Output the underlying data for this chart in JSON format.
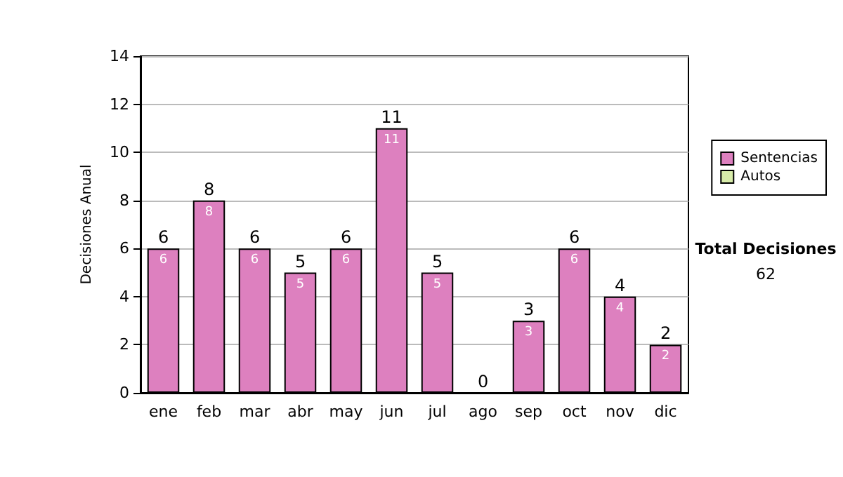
{
  "chart_data": {
    "type": "bar",
    "ylabel": "Decisiones Anual",
    "categories": [
      "ene",
      "feb",
      "mar",
      "abr",
      "may",
      "jun",
      "jul",
      "ago",
      "sep",
      "oct",
      "nov",
      "dic"
    ],
    "series": [
      {
        "name": "Sentencias",
        "color": "#dd80bf",
        "values": [
          6,
          8,
          6,
          5,
          6,
          11,
          5,
          0,
          3,
          6,
          4,
          2
        ],
        "value_labels": [
          "6",
          "8",
          "6",
          "5",
          "6",
          "11",
          "5",
          null,
          "3",
          "6",
          "4",
          "2"
        ]
      },
      {
        "name": "Autos",
        "color": "#d8ecaa",
        "values": [
          0,
          0,
          0,
          0,
          0,
          0,
          0,
          0,
          0,
          0,
          0,
          0
        ]
      }
    ],
    "stacked": true,
    "totals": [
      "6",
      "8",
      "6",
      "5",
      "6",
      "11",
      "5",
      "0",
      "3",
      "6",
      "4",
      "2"
    ],
    "ylim": [
      0,
      14
    ],
    "yticks": [
      0,
      2,
      4,
      6,
      8,
      10,
      12,
      14
    ],
    "grid": "y",
    "legend": "right",
    "annotations": [
      "Total Decisiones",
      "62"
    ]
  }
}
